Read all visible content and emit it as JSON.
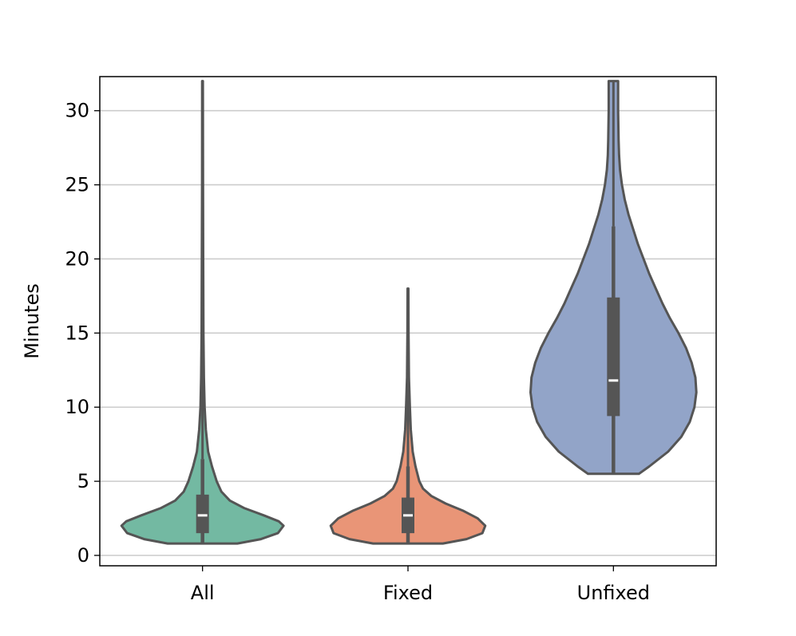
{
  "chart_data": {
    "type": "violin",
    "title": "",
    "xlabel": "",
    "ylabel": "Minutes",
    "ylim": [
      -0.7,
      32.3
    ],
    "yticks": [
      0,
      5,
      10,
      15,
      20,
      25,
      30
    ],
    "ytick_labels": [
      "0",
      "5",
      "10",
      "15",
      "20",
      "25",
      "30"
    ],
    "grid": {
      "y": true,
      "x": false,
      "color": "#cccccc"
    },
    "categories": [
      "All",
      "Fixed",
      "Unfixed"
    ],
    "series": [
      {
        "category": "All",
        "color": "#73b9a2",
        "min": 0.8,
        "q1": 1.5,
        "median": 2.7,
        "q3": 4.1,
        "whisker_high": 6.5,
        "max": 32,
        "density": [
          [
            0.8,
            0.37
          ],
          [
            1.1,
            0.62
          ],
          [
            1.5,
            0.8
          ],
          [
            2.0,
            0.86
          ],
          [
            2.3,
            0.81
          ],
          [
            2.7,
            0.65
          ],
          [
            3.2,
            0.44
          ],
          [
            3.7,
            0.29
          ],
          [
            4.3,
            0.2
          ],
          [
            5.0,
            0.15
          ],
          [
            6.0,
            0.1
          ],
          [
            7.0,
            0.06
          ],
          [
            8.5,
            0.035
          ],
          [
            10,
            0.022
          ],
          [
            12,
            0.015
          ],
          [
            15,
            0.01
          ],
          [
            20,
            0.007
          ],
          [
            25,
            0.005
          ],
          [
            32,
            0.004
          ]
        ]
      },
      {
        "category": "Fixed",
        "color": "#e99577",
        "min": 0.8,
        "q1": 1.5,
        "median": 2.7,
        "q3": 3.9,
        "whisker_high": 6.0,
        "max": 18,
        "density": [
          [
            0.8,
            0.37
          ],
          [
            1.1,
            0.62
          ],
          [
            1.5,
            0.79
          ],
          [
            2.0,
            0.82
          ],
          [
            2.5,
            0.74
          ],
          [
            3.0,
            0.59
          ],
          [
            3.5,
            0.4
          ],
          [
            4.0,
            0.25
          ],
          [
            4.5,
            0.16
          ],
          [
            5.0,
            0.12
          ],
          [
            6.0,
            0.08
          ],
          [
            7.0,
            0.05
          ],
          [
            8.5,
            0.03
          ],
          [
            10,
            0.02
          ],
          [
            12,
            0.01
          ],
          [
            15,
            0.006
          ],
          [
            18,
            0.004
          ]
        ]
      },
      {
        "category": "Unfixed",
        "color": "#92a4c8",
        "min": 5.5,
        "q1": 9.4,
        "median": 11.8,
        "q3": 17.4,
        "whisker_high": 22.2,
        "max": 32,
        "density": [
          [
            5.5,
            0.27
          ],
          [
            6.0,
            0.38
          ],
          [
            7.0,
            0.58
          ],
          [
            8.0,
            0.72
          ],
          [
            9.0,
            0.81
          ],
          [
            10.0,
            0.86
          ],
          [
            11.0,
            0.88
          ],
          [
            12.0,
            0.87
          ],
          [
            13.0,
            0.83
          ],
          [
            14.0,
            0.77
          ],
          [
            15.0,
            0.69
          ],
          [
            16.0,
            0.6
          ],
          [
            17.0,
            0.52
          ],
          [
            18.0,
            0.45
          ],
          [
            19.0,
            0.38
          ],
          [
            20.0,
            0.32
          ],
          [
            21.0,
            0.26
          ],
          [
            22.0,
            0.21
          ],
          [
            23.0,
            0.16
          ],
          [
            24.0,
            0.12
          ],
          [
            25.0,
            0.09
          ],
          [
            26.0,
            0.07
          ],
          [
            27.0,
            0.06
          ],
          [
            28.0,
            0.055
          ],
          [
            30.0,
            0.05
          ],
          [
            32.0,
            0.05
          ]
        ]
      }
    ]
  }
}
